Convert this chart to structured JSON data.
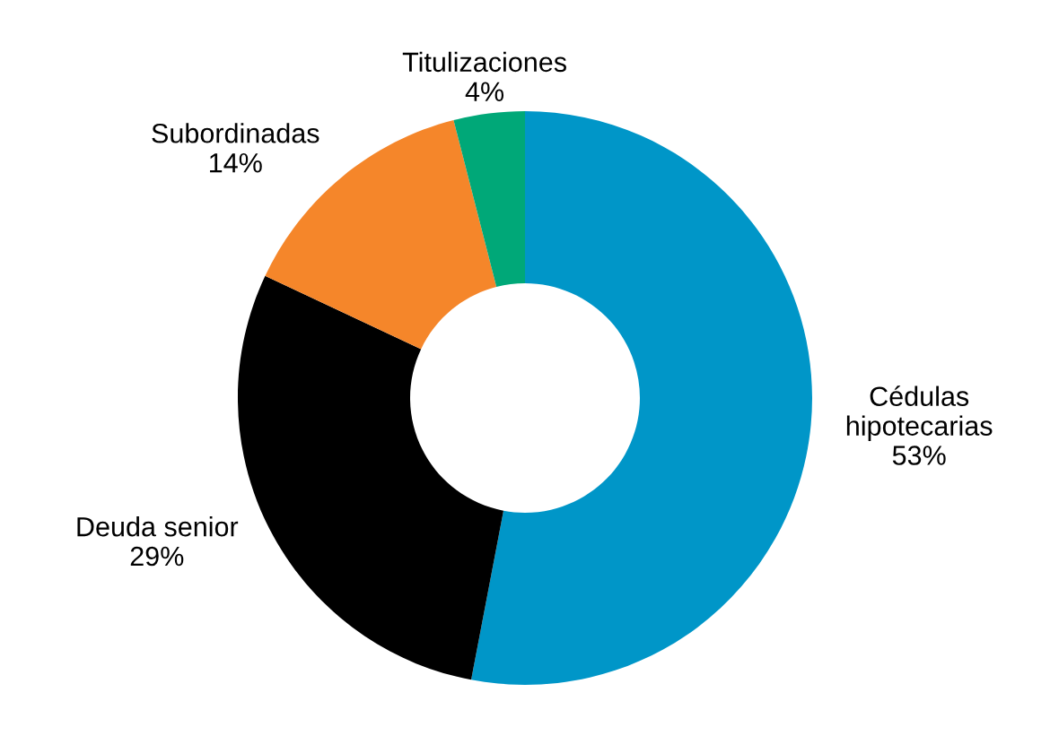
{
  "chart_data": {
    "type": "donut",
    "categories": [
      "Cédulas\nhipotecarias",
      "Deuda senior",
      "Subordinadas",
      "Titulizaciones"
    ],
    "values": [
      53,
      29,
      14,
      4
    ],
    "value_labels": [
      "53%",
      "29%",
      "14%",
      "4%"
    ],
    "colors": [
      "#0096c8",
      "#000000",
      "#f5862a",
      "#00a878"
    ]
  }
}
